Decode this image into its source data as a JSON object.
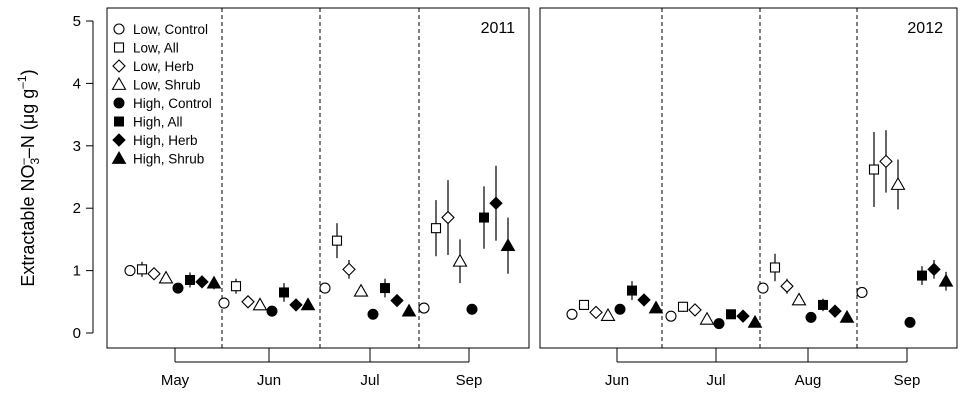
{
  "chart_data": {
    "type": "scatter",
    "ylabel_parts": [
      "Extractable NO",
      "3",
      "–",
      "–N (μg g",
      "–1",
      ")"
    ],
    "ylim": [
      0,
      5
    ],
    "yticks": [
      "0",
      "1",
      "2",
      "3",
      "4",
      "5"
    ],
    "legend": {
      "placement": "top-left",
      "entries": [
        {
          "name": "Low, Control",
          "marker": "open-circle"
        },
        {
          "name": "Low, All",
          "marker": "open-square"
        },
        {
          "name": "Low, Herb",
          "marker": "open-diamond"
        },
        {
          "name": "Low, Shrub",
          "marker": "open-triangle"
        },
        {
          "name": "High, Control",
          "marker": "filled-circle"
        },
        {
          "name": "High, All",
          "marker": "filled-square"
        },
        {
          "name": "High, Herb",
          "marker": "filled-diamond"
        },
        {
          "name": "High, Shrub",
          "marker": "filled-triangle"
        }
      ]
    },
    "panels": [
      {
        "year": "2011",
        "months": [
          "May",
          "Jun",
          "Jul",
          "Sep"
        ],
        "groups": [
          {
            "values": [
              1.0,
              1.02,
              0.95,
              0.88,
              0.72,
              0.85,
              0.82,
              0.8
            ],
            "err": [
              0.05,
              0.12,
              0.08,
              0.08,
              0.05,
              0.12,
              0.08,
              0.1
            ]
          },
          {
            "values": [
              0.48,
              0.75,
              0.5,
              0.45,
              0.35,
              0.65,
              0.45,
              0.45
            ],
            "err": [
              0.05,
              0.12,
              0.06,
              0.06,
              0.04,
              0.15,
              0.08,
              0.08
            ]
          },
          {
            "values": [
              0.72,
              1.48,
              1.02,
              0.67,
              0.3,
              0.72,
              0.52,
              0.35
            ],
            "err": [
              0.06,
              0.28,
              0.15,
              0.08,
              0.04,
              0.15,
              0.08,
              0.08
            ]
          },
          {
            "values": [
              0.4,
              1.68,
              1.85,
              1.15,
              0.38,
              1.85,
              2.08,
              1.4
            ],
            "err": [
              0.05,
              0.45,
              0.6,
              0.35,
              0.04,
              0.5,
              0.6,
              0.45
            ]
          }
        ]
      },
      {
        "year": "2012",
        "months": [
          "Jun",
          "Jul",
          "Aug",
          "Sep"
        ],
        "groups": [
          {
            "values": [
              0.3,
              0.45,
              0.33,
              0.28,
              0.38,
              0.68,
              0.53,
              0.4
            ],
            "err": [
              0.04,
              0.06,
              0.05,
              0.05,
              0.05,
              0.15,
              0.08,
              0.08
            ]
          },
          {
            "values": [
              0.27,
              0.42,
              0.37,
              0.22,
              0.15,
              0.3,
              0.27,
              0.17
            ],
            "err": [
              0.03,
              0.08,
              0.05,
              0.05,
              0.03,
              0.05,
              0.05,
              0.05
            ]
          },
          {
            "values": [
              0.72,
              1.05,
              0.75,
              0.53,
              0.25,
              0.45,
              0.35,
              0.25
            ],
            "err": [
              0.06,
              0.22,
              0.12,
              0.08,
              0.04,
              0.1,
              0.05,
              0.05
            ]
          },
          {
            "values": [
              0.65,
              2.62,
              2.75,
              2.38,
              0.17,
              0.92,
              1.02,
              0.83
            ],
            "err": [
              0.06,
              0.6,
              0.5,
              0.4,
              0.03,
              0.15,
              0.15,
              0.15
            ]
          }
        ]
      }
    ]
  }
}
